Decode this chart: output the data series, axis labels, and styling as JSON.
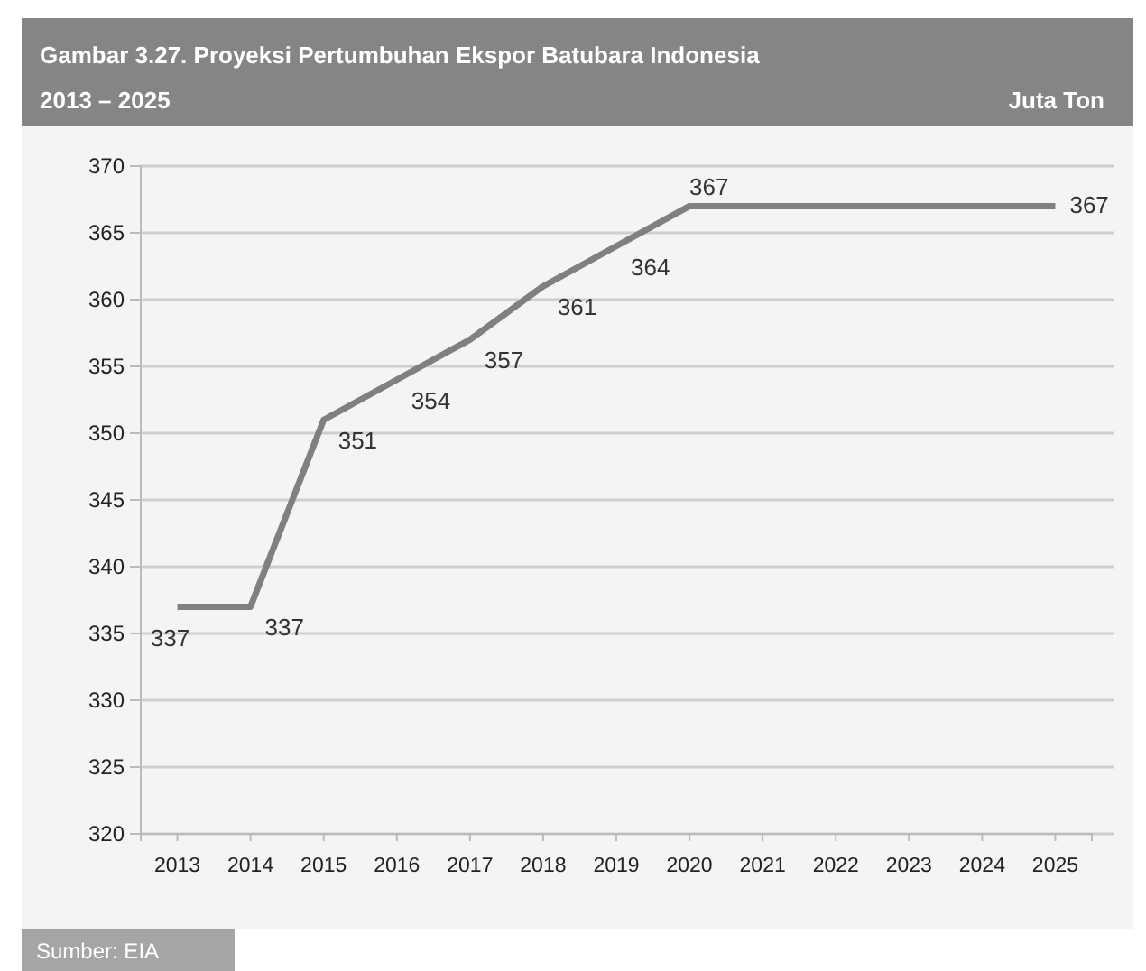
{
  "chart_data": {
    "type": "line",
    "title": "Gambar 3.27.  Proyeksi Pertumbuhan Ekspor Batubara Indonesia",
    "subtitle": "2013 – 2025",
    "ylabel": "Juta Ton",
    "categories": [
      "2013",
      "2014",
      "2015",
      "2016",
      "2017",
      "2018",
      "2019",
      "2020",
      "2021",
      "2022",
      "2023",
      "2024",
      "2025"
    ],
    "series": [
      {
        "color": "#808080",
        "values": [
          337,
          337,
          351,
          354,
          357,
          361,
          364,
          367,
          367,
          367,
          367,
          367,
          367
        ],
        "value_labels": [
          "337",
          "337",
          "351",
          "354",
          "357",
          "361",
          "364",
          "367",
          null,
          null,
          null,
          null,
          "367"
        ]
      }
    ],
    "ylim": [
      320,
      370
    ],
    "yticks": [
      320,
      325,
      330,
      335,
      340,
      345,
      350,
      355,
      360,
      365,
      370
    ],
    "grid": "y",
    "marker": "none",
    "line_style": "solid",
    "annotations": [
      "Sumber: EIA"
    ]
  }
}
